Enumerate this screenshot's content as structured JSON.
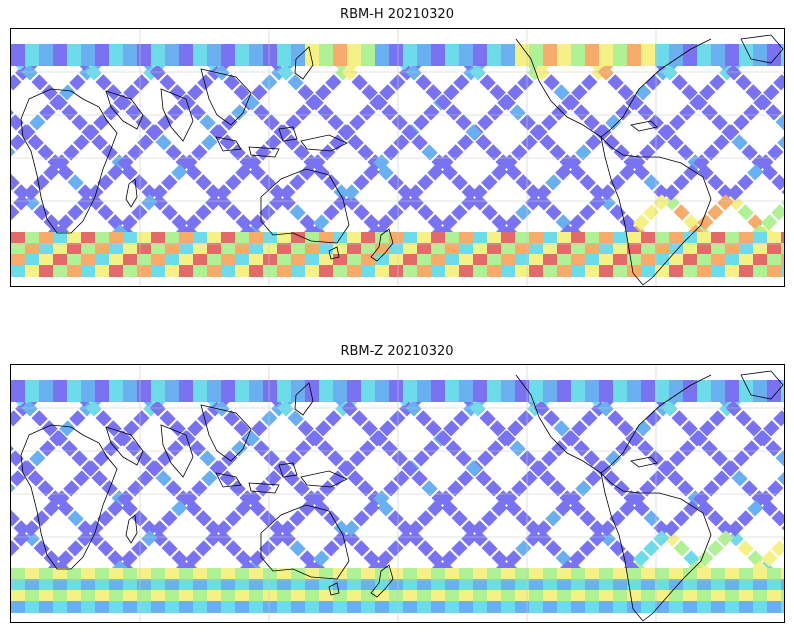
{
  "panels": [
    {
      "title": "RBM-H 20210320",
      "southern_hot": true
    },
    {
      "title": "RBM-Z 20210320",
      "southern_hot": false
    }
  ],
  "colors": {
    "cool": "#6b63f0",
    "mid": "#5aa8f0",
    "cyan": "#5fd8e8",
    "green": "#a8f08a",
    "yellow": "#f5f07a",
    "orange": "#f7a35a",
    "red": "#e05a5a",
    "coast": "#000000",
    "grid": "#c8c8c8"
  }
}
